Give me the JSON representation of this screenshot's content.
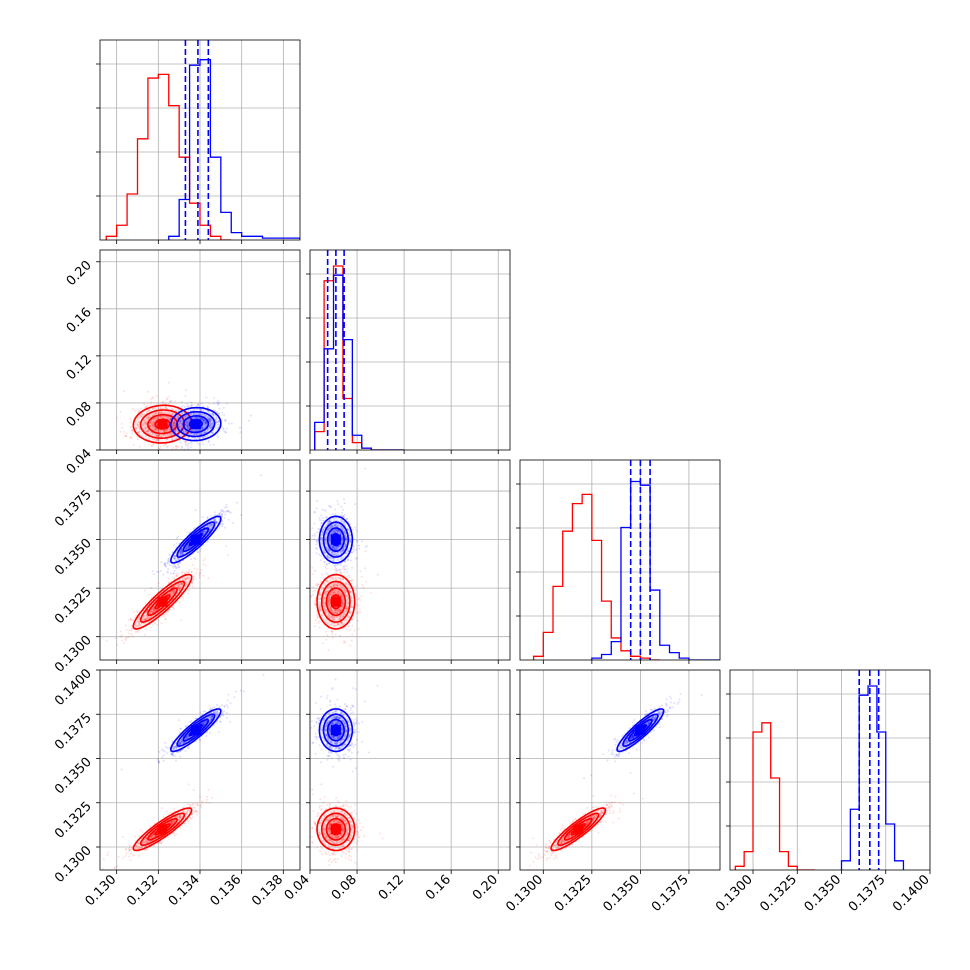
{
  "chart_data": {
    "type": "scatter",
    "plot_kind": "corner",
    "grid": true,
    "params": [
      {
        "ticks": [
          0.13,
          0.132,
          0.134,
          0.136,
          0.138
        ],
        "tick_labels": [
          "0.130",
          "0.132",
          "0.134",
          "0.136",
          "0.138"
        ],
        "range": [
          0.1292,
          0.1388
        ]
      },
      {
        "ticks": [
          0.04,
          0.08,
          0.12,
          0.16,
          0.2
        ],
        "tick_labels": [
          "0.04",
          "0.08",
          "0.12",
          "0.16",
          "0.20"
        ],
        "range": [
          0.04,
          0.21
        ]
      },
      {
        "ticks": [
          0.13,
          0.1325,
          0.135,
          0.1375
        ],
        "tick_labels": [
          "0.1300",
          "0.1325",
          "0.1350",
          "0.1375"
        ],
        "range": [
          0.1288,
          0.1391
        ]
      },
      {
        "ticks": [
          0.13,
          0.1325,
          0.135,
          0.1375,
          0.14
        ],
        "tick_labels": [
          "0.1300",
          "0.1325",
          "0.1350",
          "0.1375",
          "0.1400"
        ],
        "range": [
          0.1287,
          0.14
        ]
      }
    ],
    "series": [
      {
        "color": "#ff0000",
        "means": [
          0.1322,
          0.062,
          0.1318,
          0.131
        ],
        "sds": [
          0.0007,
          0.008,
          0.0007,
          0.0006
        ],
        "correlations": [
          [
            0,
            2,
            0.9
          ],
          [
            0,
            3,
            0.9
          ],
          [
            2,
            3,
            0.9
          ],
          [
            0,
            1,
            0.05
          ]
        ],
        "hist": [
          {
            "edges": [
              0.1295,
              0.13,
              0.1305,
              0.131,
              0.1315,
              0.132,
              0.1325,
              0.133,
              0.1335,
              0.134,
              0.1345,
              0.135,
              0.1355
            ],
            "counts": [
              0.02,
              0.08,
              0.25,
              0.55,
              0.88,
              0.9,
              0.73,
              0.45,
              0.2,
              0.08,
              0.02,
              0.0
            ]
          },
          {
            "edges": [
              0.044,
              0.052,
              0.06,
              0.068,
              0.076,
              0.084,
              0.092,
              0.1,
              0.12
            ],
            "counts": [
              0.1,
              0.92,
              1.0,
              0.28,
              0.04,
              0.01,
              0.0,
              0.0
            ]
          },
          {
            "edges": [
              0.1295,
              0.13,
              0.1305,
              0.131,
              0.1315,
              0.132,
              0.1325,
              0.133,
              0.1335,
              0.134,
              0.1345,
              0.135,
              0.1355,
              0.136
            ],
            "counts": [
              0.02,
              0.15,
              0.4,
              0.7,
              0.85,
              0.9,
              0.65,
              0.32,
              0.12,
              0.05,
              0.02,
              0.01,
              0.0
            ]
          },
          {
            "edges": [
              0.129,
              0.1295,
              0.13,
              0.1305,
              0.131,
              0.1315,
              0.132,
              0.1325,
              0.133,
              0.1335
            ],
            "counts": [
              0.02,
              0.1,
              0.75,
              0.8,
              0.5,
              0.1,
              0.02,
              0.0,
              0.0
            ]
          }
        ],
        "quantiles": []
      },
      {
        "color": "#0000ff",
        "means": [
          0.1338,
          0.062,
          0.135,
          0.1366
        ],
        "sds": [
          0.0006,
          0.007,
          0.0006,
          0.0006
        ],
        "correlations": [
          [
            0,
            2,
            0.9
          ],
          [
            0,
            3,
            0.9
          ],
          [
            2,
            3,
            0.9
          ],
          [
            0,
            1,
            0.05
          ]
        ],
        "hist": [
          {
            "edges": [
              0.1325,
              0.133,
              0.1335,
              0.134,
              0.1345,
              0.135,
              0.1355,
              0.136,
              0.137,
              0.1388
            ],
            "counts": [
              0.02,
              0.22,
              0.95,
              0.98,
              0.45,
              0.15,
              0.04,
              0.02,
              0.01
            ]
          },
          {
            "edges": [
              0.044,
              0.052,
              0.06,
              0.068,
              0.076,
              0.084,
              0.092,
              0.1,
              0.12
            ],
            "counts": [
              0.15,
              0.55,
              0.95,
              0.6,
              0.08,
              0.01,
              0.0,
              0.0
            ]
          },
          {
            "edges": [
              0.1325,
              0.133,
              0.1335,
              0.134,
              0.1345,
              0.135,
              0.1355,
              0.136,
              0.1365,
              0.137,
              0.1375,
              0.1391
            ],
            "counts": [
              0.01,
              0.03,
              0.1,
              0.72,
              0.97,
              0.95,
              0.38,
              0.08,
              0.04,
              0.01,
              0.0
            ]
          },
          {
            "edges": [
              0.135,
              0.1355,
              0.136,
              0.1365,
              0.137,
              0.1375,
              0.138,
              0.1385
            ],
            "counts": [
              0.05,
              0.33,
              0.95,
              1.0,
              0.75,
              0.25,
              0.05
            ]
          }
        ],
        "quantiles": [
          [
            0.1333,
            0.1339,
            0.1344
          ],
          [
            0.055,
            0.062,
            0.069
          ],
          [
            0.1345,
            0.135,
            0.1355
          ],
          [
            0.136,
            0.1366,
            0.1371
          ]
        ]
      }
    ]
  }
}
